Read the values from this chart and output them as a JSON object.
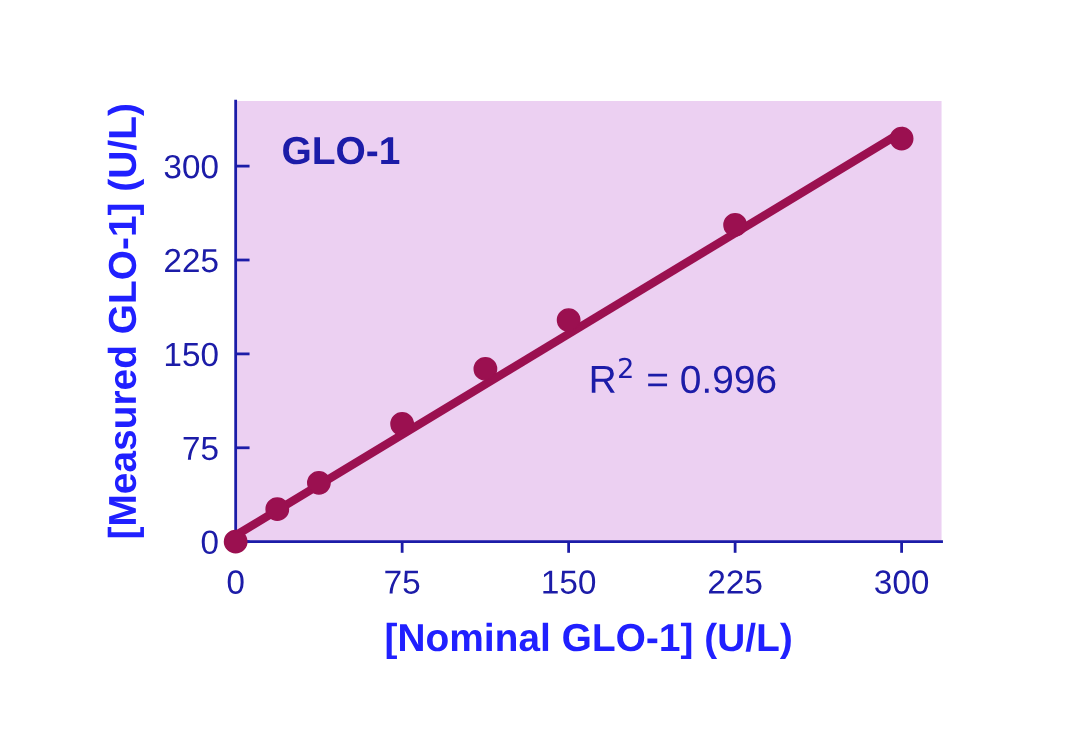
{
  "chart_data": {
    "type": "scatter",
    "xlabel": "[Nominal GLO-1] (U/L)",
    "ylabel": "[Measured GLO-1] (U/L)",
    "x": [
      0,
      18.75,
      37.5,
      75,
      112.5,
      150,
      225,
      300
    ],
    "series": [
      {
        "color": "#9b1050",
        "marker": "circle",
        "values": [
          0,
          26,
          47,
          94,
          138,
          177,
          253,
          322
        ]
      },
      {
        "type": "line",
        "color": "#9b1050",
        "marker": "none",
        "x": [
          0,
          300
        ],
        "values": [
          5,
          327
        ]
      }
    ],
    "xlim": [
      0,
      318
    ],
    "ylim": [
      0,
      352
    ],
    "xticks": [
      0,
      75,
      150,
      225,
      300
    ],
    "yticks": [
      0,
      75,
      150,
      225,
      300
    ],
    "grid": false,
    "legend": false,
    "annotations": [
      "GLO-1",
      "R$^{2}$ = 0.996"
    ]
  }
}
